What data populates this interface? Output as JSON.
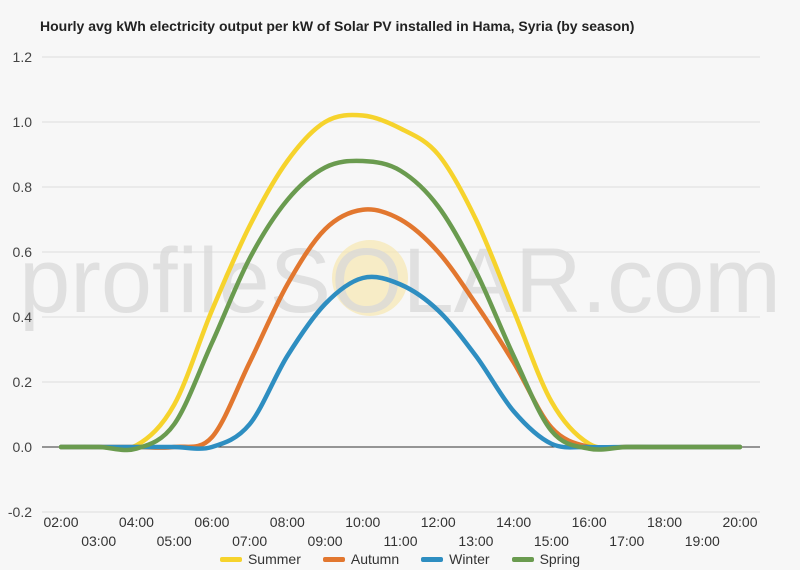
{
  "watermark": {
    "text": "profileSOLAR.com"
  },
  "chart_data": {
    "type": "line",
    "title": "Hourly avg kWh electricity output per kW of Solar PV installed in Hama, Syria (by season)",
    "xlabel": "",
    "ylabel": "",
    "ylim": [
      -0.2,
      1.2
    ],
    "yticks": [
      -0.2,
      0.0,
      0.2,
      0.4,
      0.6,
      0.8,
      1.0,
      1.2
    ],
    "x": [
      "02:00",
      "03:00",
      "04:00",
      "05:00",
      "06:00",
      "07:00",
      "08:00",
      "09:00",
      "10:00",
      "11:00",
      "12:00",
      "13:00",
      "14:00",
      "15:00",
      "16:00",
      "17:00",
      "18:00",
      "19:00",
      "20:00"
    ],
    "grid": true,
    "legend": "bottom",
    "series": [
      {
        "name": "Summer",
        "color": "#f6d32c",
        "values": [
          0,
          0,
          0.005,
          0.13,
          0.42,
          0.68,
          0.88,
          1.0,
          1.02,
          0.98,
          0.9,
          0.7,
          0.42,
          0.14,
          0.01,
          0,
          0,
          0,
          0
        ]
      },
      {
        "name": "Autumn",
        "color": "#e2772f",
        "values": [
          0,
          0,
          0,
          0,
          0.03,
          0.26,
          0.5,
          0.67,
          0.73,
          0.7,
          0.6,
          0.44,
          0.26,
          0.06,
          0.0,
          0,
          0,
          0,
          0
        ]
      },
      {
        "name": "Winter",
        "color": "#2e8ec1",
        "values": [
          0,
          0,
          0,
          0,
          0,
          0.07,
          0.28,
          0.44,
          0.52,
          0.5,
          0.42,
          0.28,
          0.11,
          0.01,
          0,
          0,
          0,
          0,
          0
        ]
      },
      {
        "name": "Spring",
        "color": "#6a9b4f",
        "values": [
          0,
          0,
          -0.005,
          0.07,
          0.32,
          0.58,
          0.76,
          0.86,
          0.88,
          0.85,
          0.74,
          0.54,
          0.28,
          0.05,
          -0.005,
          0,
          0,
          0,
          0
        ]
      }
    ]
  }
}
